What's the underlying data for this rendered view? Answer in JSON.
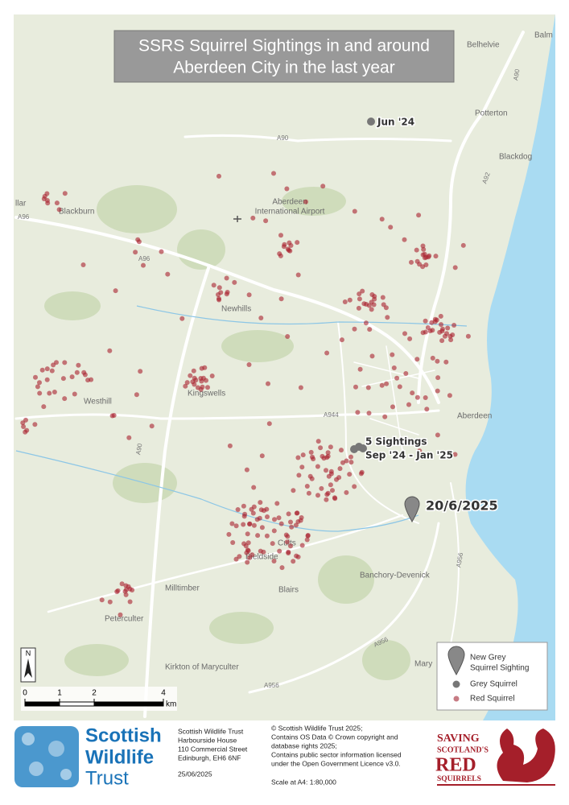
{
  "map": {
    "title": [
      "SSRS Squirrel Sightings in and around",
      "Aberdeen City in the last year"
    ],
    "places": [
      "Belhelvie",
      "Balm",
      "Potterton",
      "Blackdog",
      "Blackburn",
      "Aberdeen",
      "International Airport",
      "Newhills",
      "Westhill",
      "Kingswells",
      "Aberdeen",
      "Cults",
      "Bieldside",
      "Milltimber",
      "Blairs",
      "Peterculter",
      "Banchory-Devenick",
      "Kirkton of Maryculter",
      "Mary",
      "llar"
    ],
    "roads": [
      "A90",
      "A90",
      "A96",
      "A96",
      "A92",
      "A944",
      "A90",
      "A956",
      "A956",
      "A956"
    ],
    "annotations": {
      "grey_1": "Jun '24",
      "grey_5": [
        "5 Sightings",
        "Sep '24 - Jan '25"
      ],
      "new_grey": "20/6/2025"
    },
    "legend": {
      "new_grey": [
        "New Grey",
        "Squirrel Sighting"
      ],
      "grey": "Grey Squirrel",
      "red": "Red Squirrel"
    },
    "north": "N",
    "scale_bar": {
      "ticks": [
        0,
        1,
        2,
        4
      ],
      "unit": "km"
    }
  },
  "footer": {
    "swt_logo": [
      "Scottish",
      "Wildlife",
      "Trust"
    ],
    "address": [
      "Scottish Wildlife Trust",
      "Harbourside House",
      "110 Commercial Street",
      "Edinburgh, EH6 6NF"
    ],
    "date": "25/06/2025",
    "copyright": [
      "© Scottish Wildlife Trust 2025;",
      "Contains OS Data © Crown copyright and",
      "database rights 2025;",
      "Contains public sector information licensed",
      "under the Open Government Licence v3.0."
    ],
    "scale": "Scale at A4: 1:80,000",
    "ssrs_logo": [
      "SAVING",
      "SCOTLAND'S",
      "RED",
      "SQUIRRELS"
    ]
  }
}
